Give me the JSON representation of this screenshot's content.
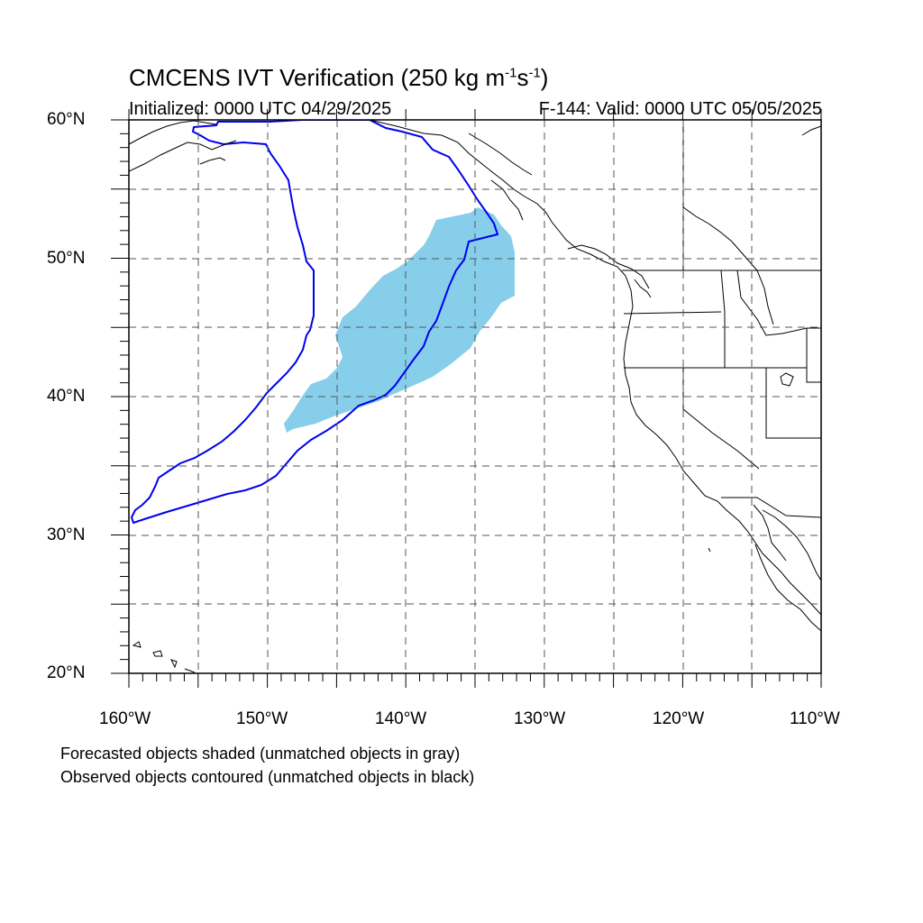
{
  "title": {
    "main": "CMCENS IVT Verification (250 kg m",
    "exp1": "-1",
    "mid": "s",
    "exp2": "-1",
    "close": ")"
  },
  "init_text": "Initialized: 0000 UTC 04/29/2025",
  "valid_text": "F-144: Valid: 0000 UTC 05/05/2025",
  "lat_labels": [
    "60°N",
    "50°N",
    "40°N",
    "30°N",
    "20°N"
  ],
  "lon_labels": [
    "160°W",
    "150°W",
    "140°W",
    "130°W",
    "120°W",
    "110°W"
  ],
  "notes": [
    "Forecasted objects shaded (unmatched objects in gray)",
    "Observed objects contoured (unmatched objects in black)"
  ],
  "colors": {
    "forecast_fill": "#87ceeb",
    "observed_contour": "#0000ee",
    "coast": "#000000",
    "grid": "#555555"
  },
  "map_extent": {
    "lon_min": -160,
    "lon_max": -110,
    "lat_min": 20,
    "lat_max": 60
  }
}
